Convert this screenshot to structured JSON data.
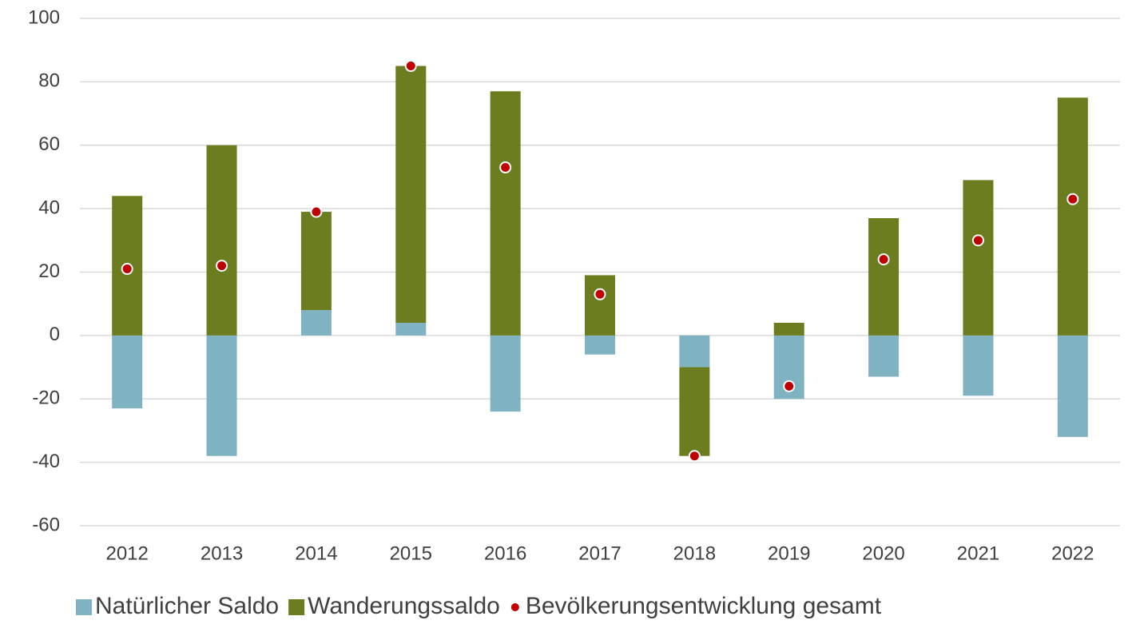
{
  "chart_data": {
    "type": "bar",
    "stacked": true,
    "categories": [
      "2012",
      "2013",
      "2014",
      "2015",
      "2016",
      "2017",
      "2018",
      "2019",
      "2020",
      "2021",
      "2022"
    ],
    "series": [
      {
        "name": "Natürlicher Saldo",
        "type": "bar",
        "color": "#7fb3c2",
        "values": [
          -23,
          -38,
          8,
          4,
          -24,
          -6,
          -10,
          -20,
          -13,
          -19,
          -32
        ]
      },
      {
        "name": "Wanderungssaldo",
        "type": "bar",
        "color": "#6b7d1f",
        "values": [
          44,
          60,
          31,
          81,
          77,
          19,
          -28,
          4,
          37,
          49,
          75
        ]
      },
      {
        "name": "Bevölkerungsentwicklung gesamt",
        "type": "scatter",
        "color": "#c00000",
        "values": [
          21,
          22,
          39,
          85,
          53,
          13,
          -38,
          -16,
          24,
          30,
          43
        ]
      }
    ],
    "ylim": [
      -60,
      100
    ],
    "yticks": [
      -60,
      -40,
      -20,
      0,
      20,
      40,
      60,
      80,
      100
    ],
    "grid": true,
    "legend": "bottom"
  }
}
